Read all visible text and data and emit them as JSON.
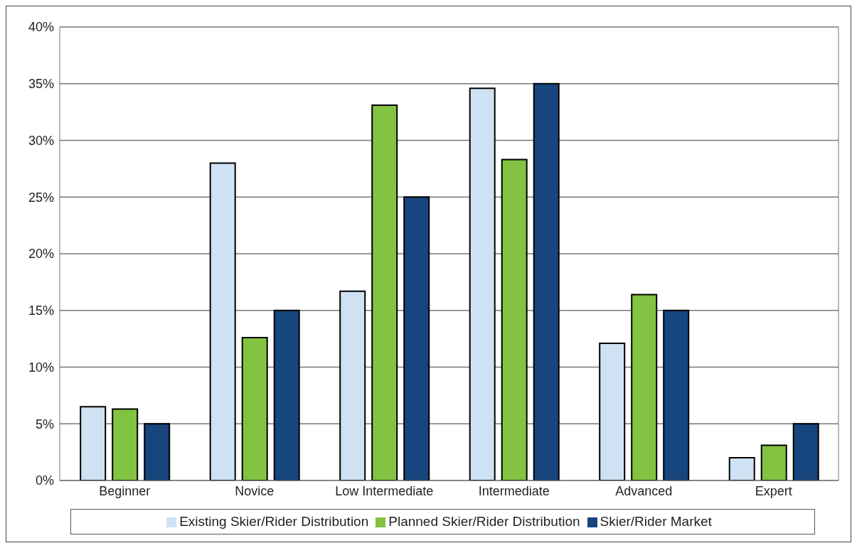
{
  "chart_data": {
    "type": "bar",
    "categories": [
      "Beginner",
      "Novice",
      "Low Intermediate",
      "Intermediate",
      "Advanced",
      "Expert"
    ],
    "series": [
      {
        "name": "Existing Skier/Rider Distribution",
        "color": "#cfe2f3",
        "values": [
          6.5,
          28.0,
          16.7,
          34.6,
          12.1,
          2.0
        ]
      },
      {
        "name": "Planned Skier/Rider Distribution",
        "color": "#82c341",
        "values": [
          6.3,
          12.6,
          33.1,
          28.3,
          16.4,
          3.1
        ]
      },
      {
        "name": "Skier/Rider Market",
        "color": "#17467e",
        "values": [
          5,
          15,
          25,
          35,
          15,
          5
        ]
      }
    ],
    "ylim": [
      0,
      40
    ],
    "yticks": [
      {
        "value": 0,
        "label": "0%"
      },
      {
        "value": 5,
        "label": "5%"
      },
      {
        "value": 10,
        "label": "10%"
      },
      {
        "value": 15,
        "label": "15%"
      },
      {
        "value": 20,
        "label": "20%"
      },
      {
        "value": 25,
        "label": "25%"
      },
      {
        "value": 30,
        "label": "30%"
      },
      {
        "value": 35,
        "label": "35%"
      },
      {
        "value": 40,
        "label": "40%"
      }
    ],
    "grid": "y",
    "legend": "bottom"
  }
}
